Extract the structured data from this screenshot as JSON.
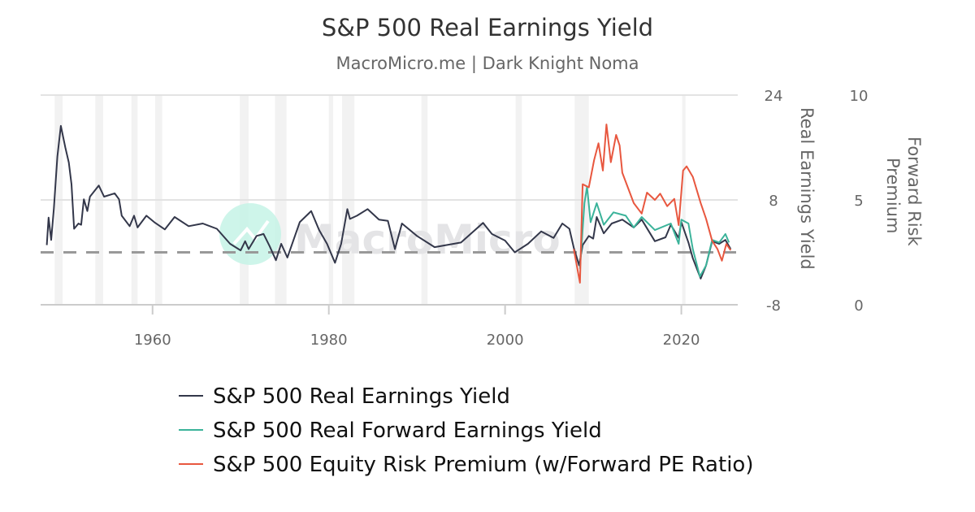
{
  "chart_data": {
    "type": "line",
    "title": "S&P 500 Real Earnings Yield",
    "subtitle": "MacroMicro.me | Dark Knight Noma",
    "watermark": "MacroMicro",
    "x_ticks": [
      1960,
      1980,
      2000,
      2020
    ],
    "xlim": [
      1947.3,
      2026.4
    ],
    "y_axes": [
      {
        "title": "Real Earnings Yield",
        "ticks": [
          24,
          8,
          -8
        ],
        "range": [
          -8,
          24
        ],
        "side": "right"
      },
      {
        "title_lines": [
          "Forward Risk",
          "Premium"
        ],
        "ticks": [
          10,
          5,
          0
        ],
        "range": [
          0,
          10
        ],
        "side": "right"
      }
    ],
    "reference_line": {
      "axis": 0,
      "value": 0,
      "style": "dashed",
      "color": "#999999"
    },
    "grid": true,
    "recessions": [
      [
        1948.9,
        1949.8
      ],
      [
        1953.5,
        1954.4
      ],
      [
        1957.6,
        1958.3
      ],
      [
        1960.3,
        1961.1
      ],
      [
        1969.9,
        1970.9
      ],
      [
        1973.9,
        1975.2
      ],
      [
        1980.0,
        1980.5
      ],
      [
        1981.5,
        1982.9
      ],
      [
        1990.5,
        1991.2
      ],
      [
        2001.2,
        2001.9
      ],
      [
        2007.9,
        2009.5
      ],
      [
        2020.1,
        2020.4
      ]
    ],
    "legend_position": "bottom",
    "series": [
      {
        "name": "S&P 500 Real Earnings Yield",
        "axis": 0,
        "color": "#33374a",
        "points": [
          [
            1948.0,
            1.1
          ],
          [
            1948.2,
            5.3
          ],
          [
            1948.5,
            1.9
          ],
          [
            1948.8,
            6.7
          ],
          [
            1949.2,
            14.6
          ],
          [
            1949.6,
            19.3
          ],
          [
            1950.1,
            16
          ],
          [
            1950.5,
            13.7
          ],
          [
            1950.8,
            10.4
          ],
          [
            1951.1,
            3.6
          ],
          [
            1951.6,
            4.4
          ],
          [
            1951.9,
            4.2
          ],
          [
            1952.2,
            8.1
          ],
          [
            1952.6,
            6.3
          ],
          [
            1952.9,
            8.5
          ],
          [
            1953.9,
            10.2
          ],
          [
            1954.5,
            8.5
          ],
          [
            1955.7,
            9
          ],
          [
            1956.2,
            8.1
          ],
          [
            1956.5,
            5.6
          ],
          [
            1957.4,
            4.0
          ],
          [
            1957.9,
            5.6
          ],
          [
            1958.3,
            3.8
          ],
          [
            1959.3,
            5.6
          ],
          [
            1960.2,
            4.6
          ],
          [
            1961.4,
            3.5
          ],
          [
            1962.5,
            5.4
          ],
          [
            1964.1,
            4
          ],
          [
            1965.7,
            4.4
          ],
          [
            1967.3,
            3.6
          ],
          [
            1968.8,
            1.3
          ],
          [
            1970.0,
            0.3
          ],
          [
            1970.5,
            1.7
          ],
          [
            1970.9,
            0.5
          ],
          [
            1971.8,
            2.5
          ],
          [
            1972.6,
            2.8
          ],
          [
            1973.3,
            0.9
          ],
          [
            1974.0,
            -1.2
          ],
          [
            1974.6,
            1.3
          ],
          [
            1975.3,
            -0.8
          ],
          [
            1976.7,
            4.6
          ],
          [
            1978.0,
            6.3
          ],
          [
            1978.9,
            3.4
          ],
          [
            1979.8,
            1.3
          ],
          [
            1980.7,
            -1.6
          ],
          [
            1981.4,
            1.3
          ],
          [
            1982.1,
            6.6
          ],
          [
            1982.4,
            5.1
          ],
          [
            1983.2,
            5.6
          ],
          [
            1984.4,
            6.6
          ],
          [
            1985.7,
            5.0
          ],
          [
            1986.7,
            4.8
          ],
          [
            1987.5,
            0.5
          ],
          [
            1988.3,
            4.4
          ],
          [
            1990.0,
            2.5
          ],
          [
            1992.0,
            0.8
          ],
          [
            1995.0,
            1.5
          ],
          [
            1997.5,
            4.5
          ],
          [
            1998.5,
            2.8
          ],
          [
            2000.0,
            1.8
          ],
          [
            2001.1,
            0
          ],
          [
            2002.6,
            1.3
          ],
          [
            2004.1,
            3.2
          ],
          [
            2005.5,
            2.2
          ],
          [
            2006.5,
            4.4
          ],
          [
            2007.3,
            3.6
          ],
          [
            2007.8,
            0.7
          ],
          [
            2008.4,
            -2
          ],
          [
            2008.8,
            1.1
          ],
          [
            2009.5,
            2.5
          ],
          [
            2010.0,
            2.1
          ],
          [
            2010.4,
            5.4
          ],
          [
            2011.2,
            2.9
          ],
          [
            2012.1,
            4.4
          ],
          [
            2013.3,
            5.0
          ],
          [
            2014.6,
            3.8
          ],
          [
            2015.5,
            5.0
          ],
          [
            2017.0,
            1.7
          ],
          [
            2018.2,
            2.3
          ],
          [
            2018.8,
            4.2
          ],
          [
            2019.7,
            2.2
          ],
          [
            2020.0,
            4.6
          ],
          [
            2020.8,
            1.5
          ],
          [
            2021.3,
            -0.9
          ],
          [
            2022.2,
            -4
          ],
          [
            2022.8,
            -2
          ],
          [
            2023.5,
            1.7
          ],
          [
            2024.3,
            1.3
          ],
          [
            2025.0,
            1.9
          ],
          [
            2025.6,
            0.5
          ]
        ]
      },
      {
        "name": "S&P 500 Real Forward Earnings Yield",
        "axis": 0,
        "color": "#3bb39a",
        "points": [
          [
            2008.5,
            -2.5
          ],
          [
            2009.0,
            7.5
          ],
          [
            2009.3,
            10
          ],
          [
            2009.7,
            4.6
          ],
          [
            2010.4,
            7.5
          ],
          [
            2011.2,
            4.2
          ],
          [
            2012.3,
            6.1
          ],
          [
            2013.7,
            5.6
          ],
          [
            2014.6,
            3.8
          ],
          [
            2015.5,
            5.4
          ],
          [
            2017.0,
            3.4
          ],
          [
            2018.8,
            4.4
          ],
          [
            2019.7,
            1.3
          ],
          [
            2020.0,
            5.0
          ],
          [
            2020.8,
            4.4
          ],
          [
            2021.3,
            0.5
          ],
          [
            2022.1,
            -3.7
          ],
          [
            2022.8,
            -2
          ],
          [
            2023.5,
            1.9
          ],
          [
            2024.3,
            1.5
          ],
          [
            2025.0,
            2.8
          ],
          [
            2025.4,
            1.5
          ]
        ]
      },
      {
        "name": "S&P 500 Equity Risk Premium (w/Forward PE Ratio)",
        "axis": 1,
        "color": "#e8573f",
        "points": [
          [
            2007.8,
            2.65
          ],
          [
            2008.5,
            1.05
          ],
          [
            2008.8,
            5.75
          ],
          [
            2009.5,
            5.6
          ],
          [
            2010.1,
            6.9
          ],
          [
            2010.6,
            7.7
          ],
          [
            2011.1,
            6.4
          ],
          [
            2011.5,
            8.6
          ],
          [
            2012.0,
            6.8
          ],
          [
            2012.6,
            8.1
          ],
          [
            2013.0,
            7.6
          ],
          [
            2013.3,
            6.3
          ],
          [
            2014.6,
            4.85
          ],
          [
            2015.5,
            4.35
          ],
          [
            2016.1,
            5.35
          ],
          [
            2017.0,
            5.0
          ],
          [
            2017.6,
            5.3
          ],
          [
            2018.4,
            4.7
          ],
          [
            2019.2,
            5.05
          ],
          [
            2019.7,
            3.8
          ],
          [
            2020.2,
            6.4
          ],
          [
            2020.6,
            6.6
          ],
          [
            2021.3,
            6.1
          ],
          [
            2022.2,
            4.85
          ],
          [
            2022.8,
            4.1
          ],
          [
            2023.5,
            3.05
          ],
          [
            2024.1,
            2.65
          ],
          [
            2024.6,
            2.1
          ],
          [
            2025.1,
            2.9
          ],
          [
            2025.6,
            2.6
          ]
        ]
      }
    ]
  }
}
